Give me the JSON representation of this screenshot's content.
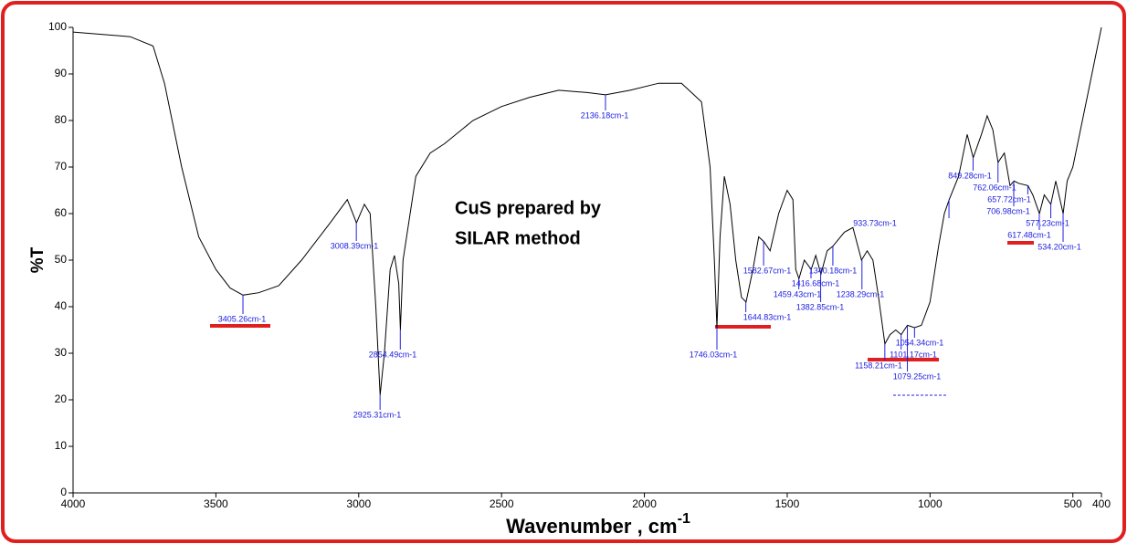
{
  "chart_data": {
    "type": "line",
    "xlabel": "Wavenumber , cm",
    "xlabel_sup": "-1",
    "ylabel": "%T",
    "annotation": [
      "CuS prepared by",
      "SILAR method"
    ],
    "xlim": [
      4000,
      400
    ],
    "ylim": [
      0,
      100
    ],
    "xticks": [
      4000,
      3500,
      3000,
      2500,
      2000,
      1500,
      1000,
      500,
      400
    ],
    "yticks": [
      0,
      10,
      20,
      30,
      40,
      50,
      60,
      70,
      80,
      90,
      100
    ],
    "grid": false,
    "series": [
      {
        "name": "CuS",
        "color": "#000000",
        "x": [
          4000,
          3800,
          3720,
          3680,
          3620,
          3560,
          3500,
          3450,
          3405,
          3350,
          3280,
          3200,
          3100,
          3040,
          3008,
          2980,
          2960,
          2940,
          2925,
          2910,
          2890,
          2875,
          2860,
          2854,
          2845,
          2800,
          2750,
          2700,
          2600,
          2500,
          2400,
          2300,
          2200,
          2136,
          2050,
          1950,
          1870,
          1800,
          1770,
          1755,
          1746,
          1735,
          1720,
          1700,
          1680,
          1660,
          1644,
          1620,
          1600,
          1582,
          1560,
          1530,
          1500,
          1480,
          1470,
          1459,
          1440,
          1416,
          1400,
          1382,
          1360,
          1340,
          1300,
          1270,
          1240,
          1220,
          1200,
          1180,
          1158,
          1140,
          1120,
          1101,
          1079,
          1054,
          1030,
          1000,
          970,
          950,
          933,
          900,
          870,
          849,
          820,
          800,
          780,
          762,
          740,
          720,
          706,
          690,
          657,
          640,
          617,
          600,
          577,
          560,
          534,
          520,
          500,
          450,
          400
        ],
        "values": [
          99,
          98,
          96,
          88,
          70,
          55,
          48,
          44,
          42.5,
          43,
          44.5,
          50,
          58,
          63,
          58,
          62,
          60,
          40,
          21,
          30,
          48,
          51,
          45,
          35,
          50,
          68,
          73,
          75,
          80,
          83,
          85,
          86.5,
          86,
          85.5,
          86.5,
          88,
          88,
          84,
          70,
          50,
          35.5,
          55,
          68,
          62,
          50,
          42,
          41,
          48,
          55,
          54,
          52,
          60,
          65,
          63,
          48,
          46,
          50,
          48,
          51,
          47,
          52,
          53,
          56,
          57,
          50,
          52,
          50,
          42,
          32,
          34,
          35,
          34,
          36,
          35.5,
          36,
          41,
          53,
          60,
          63,
          68,
          77,
          72,
          77,
          81,
          78,
          71,
          73,
          66,
          67,
          66.5,
          66,
          64,
          60,
          64,
          62,
          67,
          60,
          67,
          70,
          85,
          100
        ]
      }
    ],
    "peaks": [
      {
        "label": "3405.26cm-1",
        "x": 3405.26,
        "y": 42.5
      },
      {
        "label": "3008.39cm-1",
        "x": 3008.39,
        "y": 58
      },
      {
        "label": "2925.31cm-1",
        "x": 2925.31,
        "y": 21
      },
      {
        "label": "2854.49cm-1",
        "x": 2854.49,
        "y": 35
      },
      {
        "label": "2136.18cm-1",
        "x": 2136.18,
        "y": 85.5
      },
      {
        "label": "1746.03cm-1",
        "x": 1746.03,
        "y": 35.5
      },
      {
        "label": "1644.83cm-1",
        "x": 1644.83,
        "y": 41
      },
      {
        "label": "1582.67cm-1",
        "x": 1582.67,
        "y": 54
      },
      {
        "label": "1459.43cm-1",
        "x": 1459.43,
        "y": 46
      },
      {
        "label": "1416.68cm-1",
        "x": 1416.68,
        "y": 48
      },
      {
        "label": "1382.85cm-1",
        "x": 1382.85,
        "y": 47
      },
      {
        "label": "1340.18cm-1",
        "x": 1340.18,
        "y": 53
      },
      {
        "label": "1238.29cm-1",
        "x": 1238.29,
        "y": 50
      },
      {
        "label": "1158.21cm-1",
        "x": 1158.21,
        "y": 32
      },
      {
        "label": "1101.17cm-1",
        "x": 1101.17,
        "y": 34
      },
      {
        "label": "1079.25cm-1",
        "x": 1079.25,
        "y": 36
      },
      {
        "label": "1054.34cm-1",
        "x": 1054.34,
        "y": 35.5
      },
      {
        "label": "933.73cm-1",
        "x": 933.73,
        "y": 63
      },
      {
        "label": "849.28cm-1",
        "x": 849.28,
        "y": 72
      },
      {
        "label": "762.06cm-1",
        "x": 762.06,
        "y": 71
      },
      {
        "label": "706.98cm-1",
        "x": 706.98,
        "y": 67
      },
      {
        "label": "657.72cm-1",
        "x": 657.72,
        "y": 66
      },
      {
        "label": "617.48cm-1",
        "x": 617.48,
        "y": 60
      },
      {
        "label": "577.23cm-1",
        "x": 577.23,
        "y": 62
      },
      {
        "label": "534.20cm-1",
        "x": 534.2,
        "y": 60
      }
    ]
  }
}
